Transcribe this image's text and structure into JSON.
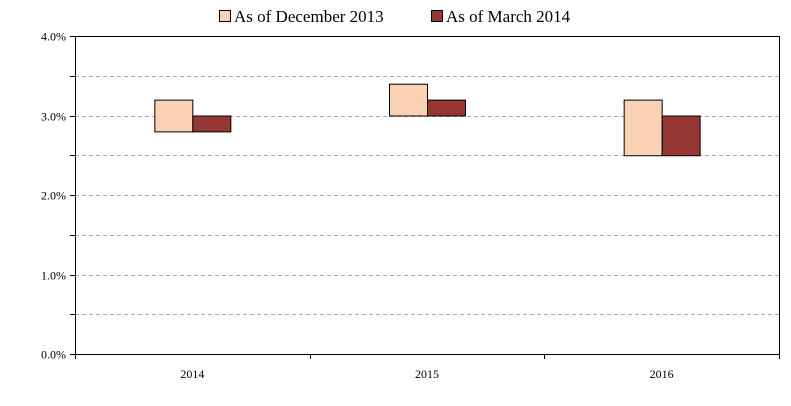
{
  "chart_data": {
    "type": "floating-bar",
    "title": "",
    "xlabel": "",
    "ylabel": "",
    "categories": [
      "2014",
      "2015",
      "2016"
    ],
    "series": [
      {
        "name": "As of December 2013",
        "color": "#fbd1b4",
        "ranges": [
          [
            2.8,
            3.2
          ],
          [
            3.0,
            3.4
          ],
          [
            2.5,
            3.2
          ]
        ]
      },
      {
        "name": "As of March 2014",
        "color": "#953735",
        "ranges": [
          [
            2.8,
            3.0
          ],
          [
            3.0,
            3.2
          ],
          [
            2.5,
            3.0
          ]
        ]
      }
    ],
    "ylim": [
      0,
      4.0
    ],
    "yticks": [
      "0.0%",
      "1.0%",
      "2.0%",
      "3.0%",
      "4.0%"
    ],
    "grid": true,
    "grid_style": "dashed",
    "legend_position": "top"
  }
}
